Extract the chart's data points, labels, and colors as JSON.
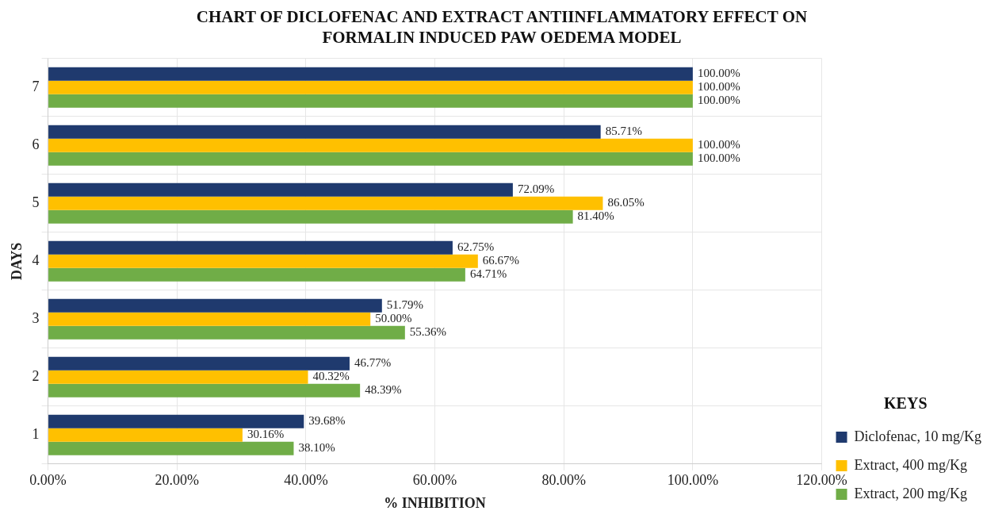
{
  "chart_data": {
    "type": "bar",
    "orientation": "horizontal",
    "title": "CHART OF DICLOFENAC AND EXTRACT ANTIINFLAMMATORY EFFECT ON FORMALIN INDUCED PAW OEDEMA MODEL",
    "xlabel": "% INHIBITION",
    "ylabel": "DAYS",
    "legend_title": "KEYS",
    "legend": "right",
    "grid": true,
    "categories": [
      "7",
      "6",
      "5",
      "4",
      "3",
      "2",
      "1"
    ],
    "xlim": [
      0,
      120
    ],
    "xticks": [
      {
        "value": 0,
        "label": "0.00%"
      },
      {
        "value": 20,
        "label": "20.00%"
      },
      {
        "value": 40,
        "label": "40.00%"
      },
      {
        "value": 60,
        "label": "60.00%"
      },
      {
        "value": 80,
        "label": "80.00%"
      },
      {
        "value": 100,
        "label": "100.00%"
      },
      {
        "value": 120,
        "label": "120.00%"
      }
    ],
    "series": [
      {
        "name": "Diclofenac, 10 mg/Kg",
        "color": "#1f3a6e",
        "values": [
          100,
          85.71,
          72.09,
          62.75,
          51.79,
          46.77,
          39.68
        ],
        "value_labels": [
          "100.00%",
          "85.71%",
          "72.09%",
          "62.75%",
          "51.79%",
          "46.77%",
          "39.68%"
        ]
      },
      {
        "name": "Extract, 400 mg/Kg",
        "color": "#ffc000",
        "values": [
          100,
          100,
          86.05,
          66.67,
          50.0,
          40.32,
          30.16
        ],
        "value_labels": [
          "100.00%",
          "100.00%",
          "86.05%",
          "66.67%",
          "50.00%",
          "40.32%",
          "30.16%"
        ]
      },
      {
        "name": "Extract, 200 mg/Kg",
        "color": "#70ad47",
        "values": [
          100,
          100,
          81.4,
          64.71,
          55.36,
          48.39,
          38.1
        ],
        "value_labels": [
          "100.00%",
          "100.00%",
          "81.40%",
          "64.71%",
          "55.36%",
          "48.39%",
          "38.10%"
        ]
      }
    ]
  }
}
